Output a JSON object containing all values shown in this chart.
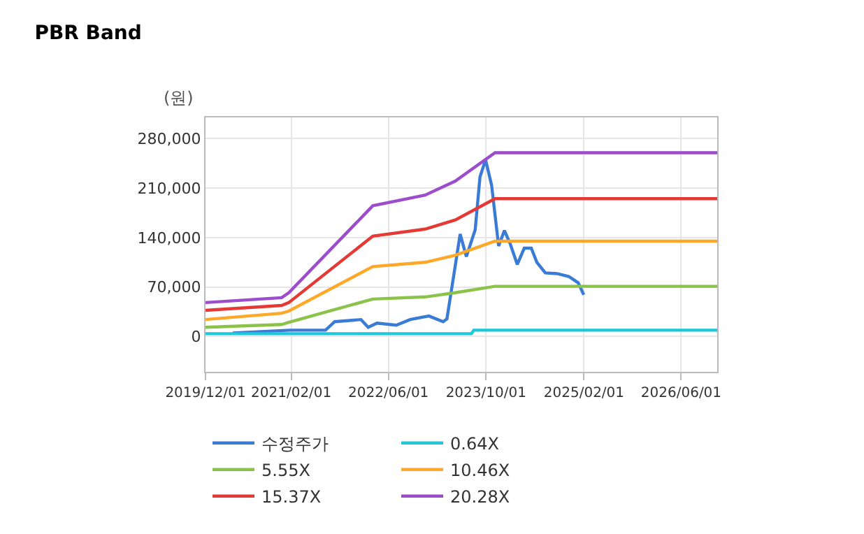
{
  "chart_data": {
    "type": "line",
    "title": "PBR Band",
    "ylabel": "(원)",
    "xlim": [
      "2019-12-01",
      "2026-11-28"
    ],
    "ylim": [
      -50000,
      310000
    ],
    "xticks": [
      {
        "value": "2019-12-01",
        "label": "2019/12/01"
      },
      {
        "value": "2021-02-01",
        "label": "2021/02/01"
      },
      {
        "value": "2022-06-01",
        "label": "2022/06/01"
      },
      {
        "value": "2023-10-01",
        "label": "2023/10/01"
      },
      {
        "value": "2025-02-01",
        "label": "2025/02/01"
      },
      {
        "value": "2026-06-01",
        "label": "2026/06/01"
      }
    ],
    "yticks": [
      {
        "value": 0,
        "label": "0"
      },
      {
        "value": 70000,
        "label": "70,000"
      },
      {
        "value": 140000,
        "label": "140,000"
      },
      {
        "value": 210000,
        "label": "210,000"
      },
      {
        "value": 280000,
        "label": "280,000"
      }
    ],
    "grid": true,
    "legend": "bottom",
    "marker": "none",
    "line_style": "solid",
    "series": [
      {
        "name": "수정주가",
        "color": "#3a7bd5",
        "x": [
          "2020-04-15",
          "2021-01-25",
          "2021-07-22",
          "2021-09-06",
          "2022-01-15",
          "2022-02-20",
          "2022-04-05",
          "2022-07-10",
          "2022-09-18",
          "2022-12-20",
          "2023-03-01",
          "2023-03-20",
          "2023-04-25",
          "2023-05-25",
          "2023-06-25",
          "2023-08-08",
          "2023-09-01",
          "2023-09-29",
          "2023-10-29",
          "2023-12-03",
          "2024-01-01",
          "2024-01-30",
          "2024-03-05",
          "2024-04-09",
          "2024-05-14",
          "2024-06-11",
          "2024-07-23",
          "2024-09-19",
          "2024-11-17",
          "2025-01-03",
          "2025-01-31"
        ],
        "values": [
          5000,
          9000,
          9000,
          21000,
          24000,
          13000,
          19000,
          16000,
          24000,
          29000,
          21000,
          25000,
          90000,
          145000,
          113000,
          151000,
          226000,
          250000,
          214000,
          128000,
          150000,
          131000,
          102000,
          125000,
          125000,
          105000,
          90000,
          89000,
          85000,
          76000,
          59000
        ]
      },
      {
        "name": "0.64X",
        "color": "#1ec8d8",
        "x": [
          "2019-12-01",
          "2023-07-20",
          "2023-08-01",
          "2026-11-28"
        ],
        "values": [
          4000,
          4000,
          9000,
          9000
        ]
      },
      {
        "name": "5.55X",
        "color": "#8bc34a",
        "x": [
          "2019-12-01",
          "2020-12-15",
          "2021-01-20",
          "2022-03-15",
          "2022-12-01",
          "2023-05-01",
          "2023-11-15",
          "2026-11-28"
        ],
        "values": [
          13000,
          17000,
          20000,
          53000,
          56000,
          62000,
          71000,
          71000
        ]
      },
      {
        "name": "10.46X",
        "color": "#ffa726",
        "x": [
          "2019-12-01",
          "2020-12-15",
          "2021-01-20",
          "2022-03-15",
          "2022-12-01",
          "2023-05-01",
          "2023-11-15",
          "2026-11-28"
        ],
        "values": [
          24000,
          33000,
          36000,
          99000,
          105000,
          115000,
          135000,
          135000
        ]
      },
      {
        "name": "15.37X",
        "color": "#e53935",
        "x": [
          "2019-12-01",
          "2020-12-15",
          "2021-01-20",
          "2022-03-15",
          "2022-12-01",
          "2023-05-01",
          "2023-11-15",
          "2026-11-28"
        ],
        "values": [
          37000,
          44000,
          48000,
          142000,
          152000,
          165000,
          195000,
          195000
        ]
      },
      {
        "name": "20.28X",
        "color": "#9c4dcc",
        "x": [
          "2019-12-01",
          "2020-12-15",
          "2021-01-20",
          "2022-03-15",
          "2022-12-01",
          "2023-05-01",
          "2023-11-15",
          "2026-11-28"
        ],
        "values": [
          48000,
          55000,
          62000,
          185000,
          200000,
          220000,
          260000,
          260000
        ]
      }
    ]
  }
}
